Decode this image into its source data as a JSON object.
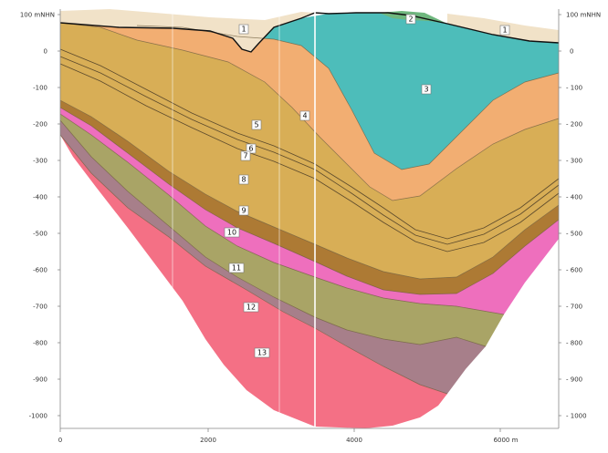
{
  "axes": {
    "left_ticks": [
      "100 mNHN",
      "0",
      "-100",
      "-200",
      "-300",
      "-400",
      "-500",
      "-600",
      "-700",
      "-800",
      "-900",
      "-1000"
    ],
    "right_ticks": [
      "100 mNHN",
      "0",
      "- 100",
      "- 200",
      "- 300",
      "- 400",
      "- 500",
      "- 600",
      "- 700",
      "- 800",
      "- 900",
      "- 1000"
    ],
    "x_ticks": [
      "0",
      "2000",
      "4000",
      "6000 m"
    ]
  },
  "units": [
    {
      "label": "1",
      "color": "#f1e2c8"
    },
    {
      "label": "1",
      "color": "#f1e2c8"
    },
    {
      "label": "2",
      "color": "#6fb77e"
    },
    {
      "label": "3",
      "color": "#4dbdba"
    },
    {
      "label": "4",
      "color": "#f2ae72"
    },
    {
      "label": "5",
      "color": "#dcb35c"
    },
    {
      "label": "6",
      "color": "#d8ae55"
    },
    {
      "label": "7",
      "color": "#d8ae55"
    },
    {
      "label": "8",
      "color": "#d7ac52"
    },
    {
      "label": "9",
      "color": "#ad7a34"
    },
    {
      "label": "10",
      "color": "#ee6fbd"
    },
    {
      "label": "11",
      "color": "#a9a466"
    },
    {
      "label": "12",
      "color": "#a77f8a"
    },
    {
      "label": "13",
      "color": "#f47085"
    }
  ]
}
